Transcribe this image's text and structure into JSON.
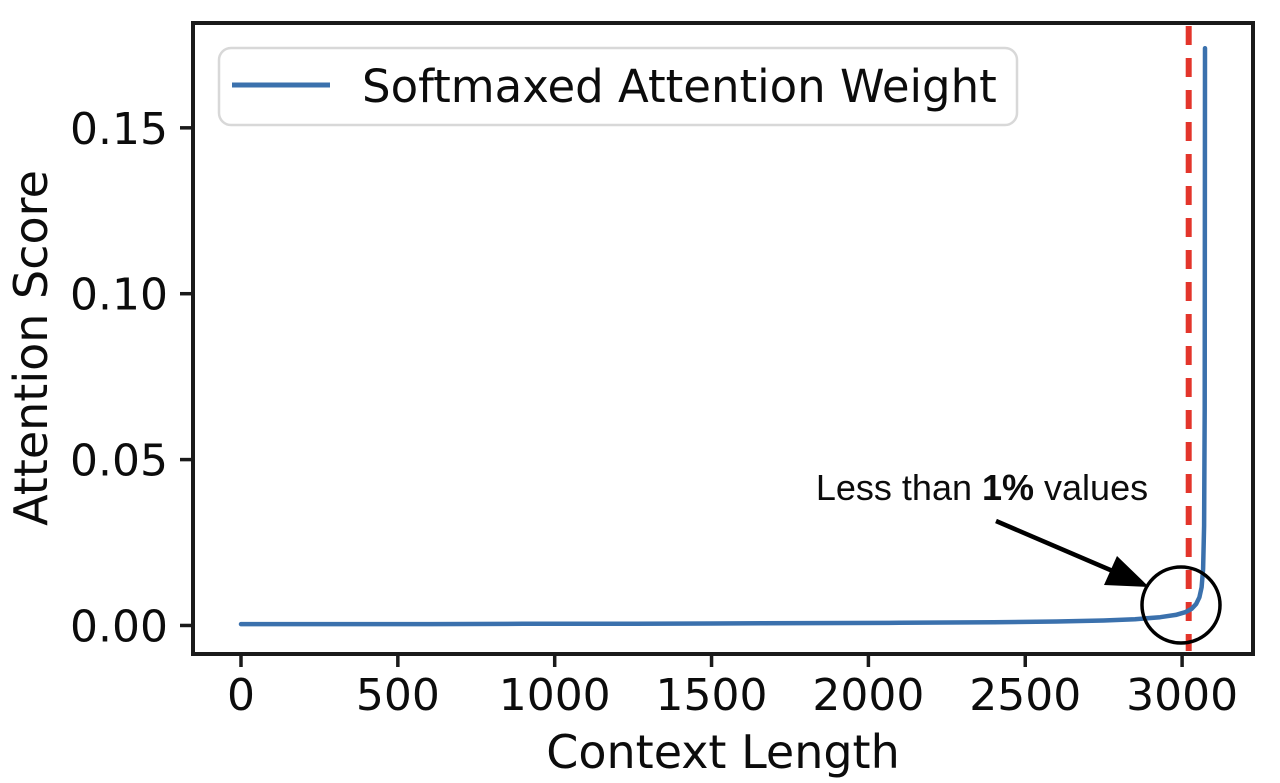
{
  "figure": {
    "background_color": "#ffffff",
    "spine_color": "#1a1a1a"
  },
  "chart_data": {
    "type": "line",
    "title": "",
    "xlabel": "Context Length",
    "ylabel": "Attention Score",
    "xlim": [
      -153,
      3226
    ],
    "ylim": [
      -0.0086,
      0.1816
    ],
    "grid": false,
    "x_ticks": [
      {
        "value": 0,
        "label": "0"
      },
      {
        "value": 500,
        "label": "500"
      },
      {
        "value": 1000,
        "label": "1000"
      },
      {
        "value": 1500,
        "label": "1500"
      },
      {
        "value": 2000,
        "label": "2000"
      },
      {
        "value": 2500,
        "label": "2500"
      },
      {
        "value": 3000,
        "label": "3000"
      }
    ],
    "y_ticks": [
      {
        "value": 0.0,
        "label": "0.00"
      },
      {
        "value": 0.05,
        "label": "0.05"
      },
      {
        "value": 0.1,
        "label": "0.10"
      },
      {
        "value": 0.15,
        "label": "0.15"
      }
    ],
    "legend": {
      "position": "upper left",
      "entries": [
        "Softmaxed Attention Weight"
      ]
    },
    "series": [
      {
        "name": "Softmaxed Attention Weight",
        "color": "#3b71ad",
        "points": [
          [
            0,
            0.0004
          ],
          [
            300,
            0.0004
          ],
          [
            600,
            0.0004
          ],
          [
            900,
            0.0005
          ],
          [
            1200,
            0.0005
          ],
          [
            1500,
            0.0006
          ],
          [
            1800,
            0.0007
          ],
          [
            2100,
            0.0008
          ],
          [
            2400,
            0.001
          ],
          [
            2600,
            0.0012
          ],
          [
            2750,
            0.0015
          ],
          [
            2850,
            0.0019
          ],
          [
            2930,
            0.0025
          ],
          [
            2980,
            0.0032
          ],
          [
            3010,
            0.004
          ],
          [
            3030,
            0.005
          ],
          [
            3045,
            0.0065
          ],
          [
            3055,
            0.0085
          ],
          [
            3062,
            0.0115
          ],
          [
            3067,
            0.017
          ],
          [
            3070,
            0.03
          ],
          [
            3072,
            0.065
          ],
          [
            3073,
            0.174
          ]
        ]
      }
    ],
    "vline": {
      "x": 3021,
      "color": "#e3352b",
      "style": "dashed"
    },
    "annotation": {
      "prefix": "Less than ",
      "bold": "1%",
      "suffix": " values",
      "full_text": "Less than 1% values",
      "target": "circled elbow of curve near x=3000"
    }
  }
}
